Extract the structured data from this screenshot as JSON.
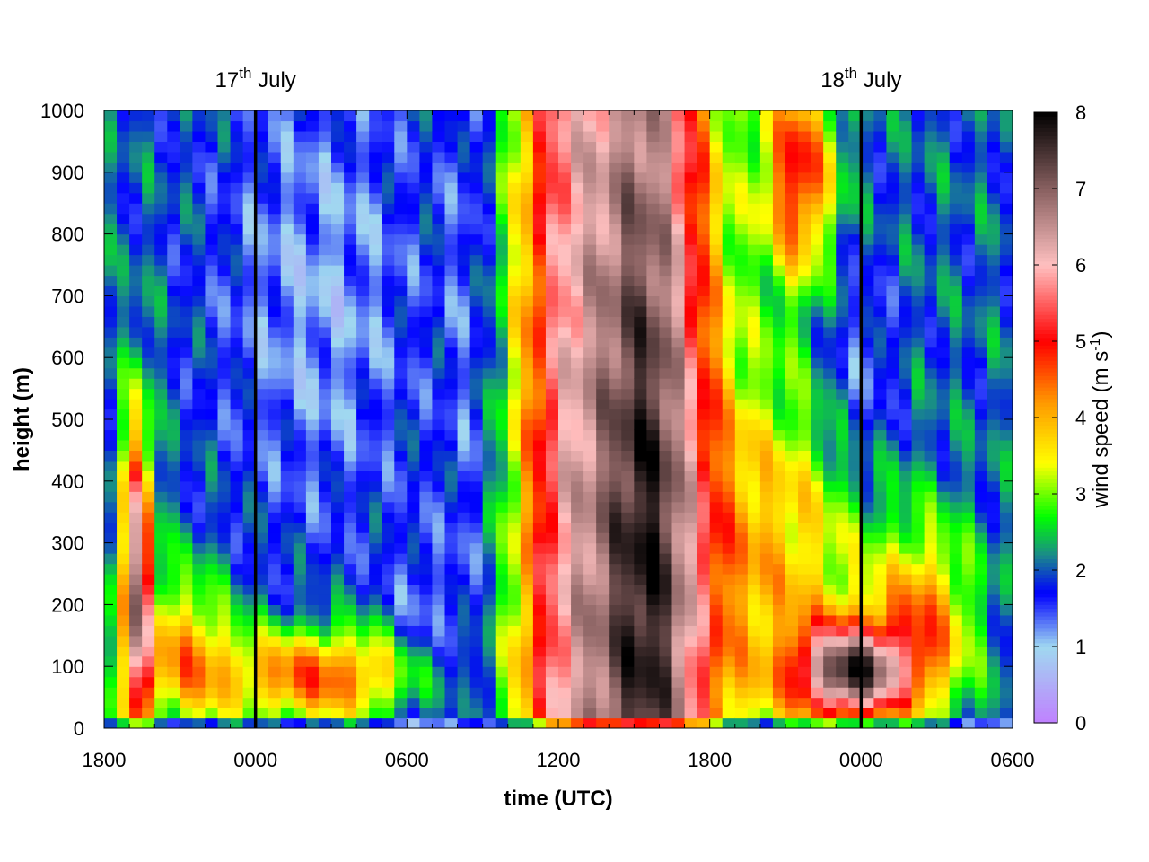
{
  "chart_data": {
    "type": "heatmap",
    "title": "",
    "xlabel": "time (UTC)",
    "ylabel": "height (m)",
    "colorbar_label_prefix": "wind speed (m s",
    "colorbar_label_exp": "-1",
    "colorbar_label_suffix": ")",
    "x_range_hours": [
      0,
      36
    ],
    "x_ticks": [
      {
        "hours": 0,
        "label": "1800"
      },
      {
        "hours": 6,
        "label": "0000"
      },
      {
        "hours": 12,
        "label": "0600"
      },
      {
        "hours": 18,
        "label": "1200"
      },
      {
        "hours": 24,
        "label": "1800"
      },
      {
        "hours": 30,
        "label": "0000"
      },
      {
        "hours": 36,
        "label": "0600"
      }
    ],
    "ylim": [
      0,
      1000
    ],
    "y_ticks": [
      0,
      100,
      200,
      300,
      400,
      500,
      600,
      700,
      800,
      900,
      1000
    ],
    "zlim": [
      0,
      8
    ],
    "z_ticks": [
      0,
      1,
      2,
      3,
      4,
      5,
      6,
      7,
      8
    ],
    "date_markers": [
      {
        "hours": 6,
        "label_day": "17",
        "label_sup": "th",
        "label_month": "July"
      },
      {
        "hours": 30,
        "label_day": "18",
        "label_sup": "th",
        "label_month": "July"
      }
    ],
    "colormap": [
      {
        "value": 0,
        "color": "#c080ff"
      },
      {
        "value": 1,
        "color": "#a0d8f0"
      },
      {
        "value": 1.7,
        "color": "#0000ff"
      },
      {
        "value": 2.2,
        "color": "#1a8a8a"
      },
      {
        "value": 2.7,
        "color": "#00ff00"
      },
      {
        "value": 3.4,
        "color": "#ffff00"
      },
      {
        "value": 4.2,
        "color": "#ff9900"
      },
      {
        "value": 5,
        "color": "#ff0000"
      },
      {
        "value": 6,
        "color": "#ffc0c0"
      },
      {
        "value": 7,
        "color": "#886060"
      },
      {
        "value": 8,
        "color": "#000000"
      }
    ],
    "grid": false
  }
}
